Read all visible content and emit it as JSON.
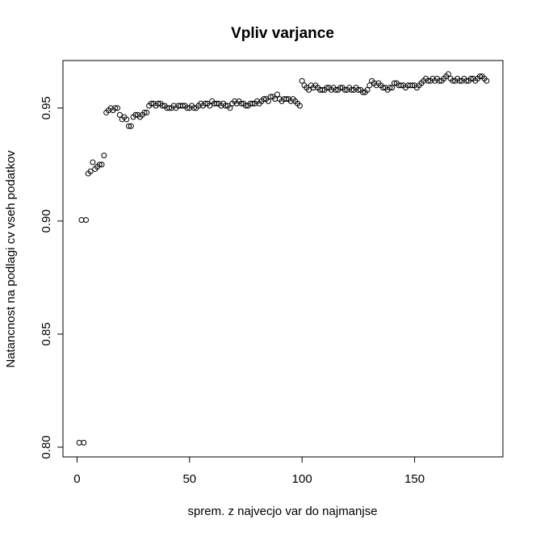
{
  "chart_data": {
    "type": "scatter",
    "title": "Vpliv varjance",
    "x_label": "sprem. z najvecjo var do najmanjse",
    "y_label": "Natancnost na podlagi cv vseh podatkov",
    "color": "#000000",
    "xlim": [
      -6.24,
      189.24
    ],
    "ylim": [
      0.7957,
      0.971
    ],
    "xticks": [
      0,
      50,
      100,
      150
    ],
    "yticks": [
      {
        "value": 0.8,
        "label": "0.80"
      },
      0.85,
      {
        "value": 0.9,
        "label": "0.90"
      },
      0.95
    ],
    "x": [
      1,
      2,
      3,
      4,
      5,
      6,
      7,
      8,
      9,
      10,
      11,
      12,
      13,
      14,
      15,
      16,
      17,
      18,
      19,
      20,
      21,
      22,
      23,
      24,
      25,
      26,
      27,
      28,
      29,
      30,
      31,
      32,
      33,
      34,
      35,
      36,
      37,
      38,
      39,
      40,
      41,
      42,
      43,
      44,
      45,
      46,
      47,
      48,
      49,
      50,
      51,
      52,
      53,
      54,
      55,
      56,
      57,
      58,
      59,
      60,
      61,
      62,
      63,
      64,
      65,
      66,
      67,
      68,
      69,
      70,
      71,
      72,
      73,
      74,
      75,
      76,
      77,
      78,
      79,
      80,
      81,
      82,
      83,
      84,
      85,
      86,
      87,
      88,
      89,
      90,
      91,
      92,
      93,
      94,
      95,
      96,
      97,
      98,
      99,
      100,
      101,
      102,
      103,
      104,
      105,
      106,
      107,
      108,
      109,
      110,
      111,
      112,
      113,
      114,
      115,
      116,
      117,
      118,
      119,
      120,
      121,
      122,
      123,
      124,
      125,
      126,
      127,
      128,
      129,
      130,
      131,
      132,
      133,
      134,
      135,
      136,
      137,
      138,
      139,
      140,
      141,
      142,
      143,
      144,
      145,
      146,
      147,
      148,
      149,
      150,
      151,
      152,
      153,
      154,
      155,
      156,
      157,
      158,
      159,
      160,
      161,
      162,
      163,
      164,
      165,
      166,
      167,
      168,
      169,
      170,
      171,
      172,
      173,
      174,
      175,
      176,
      177,
      178,
      179,
      180,
      181,
      182
    ],
    "values": [
      0.802,
      0.9005,
      0.802,
      0.9005,
      0.921,
      0.922,
      0.926,
      0.923,
      0.924,
      0.925,
      0.925,
      0.929,
      0.948,
      0.949,
      0.95,
      0.949,
      0.95,
      0.95,
      0.947,
      0.945,
      0.946,
      0.945,
      0.942,
      0.942,
      0.946,
      0.947,
      0.947,
      0.946,
      0.947,
      0.948,
      0.948,
      0.951,
      0.952,
      0.952,
      0.951,
      0.952,
      0.952,
      0.951,
      0.951,
      0.95,
      0.95,
      0.95,
      0.951,
      0.95,
      0.951,
      0.951,
      0.951,
      0.951,
      0.95,
      0.95,
      0.951,
      0.95,
      0.95,
      0.951,
      0.952,
      0.951,
      0.952,
      0.952,
      0.951,
      0.953,
      0.952,
      0.952,
      0.952,
      0.951,
      0.952,
      0.951,
      0.951,
      0.95,
      0.952,
      0.953,
      0.952,
      0.953,
      0.952,
      0.952,
      0.951,
      0.951,
      0.952,
      0.952,
      0.952,
      0.953,
      0.952,
      0.953,
      0.954,
      0.954,
      0.953,
      0.955,
      0.955,
      0.954,
      0.956,
      0.954,
      0.953,
      0.954,
      0.954,
      0.954,
      0.953,
      0.954,
      0.953,
      0.952,
      0.951,
      0.962,
      0.96,
      0.959,
      0.958,
      0.96,
      0.959,
      0.96,
      0.959,
      0.958,
      0.958,
      0.958,
      0.959,
      0.959,
      0.958,
      0.959,
      0.958,
      0.958,
      0.959,
      0.959,
      0.958,
      0.958,
      0.959,
      0.958,
      0.958,
      0.959,
      0.958,
      0.958,
      0.957,
      0.957,
      0.958,
      0.96,
      0.962,
      0.961,
      0.96,
      0.961,
      0.96,
      0.959,
      0.959,
      0.958,
      0.959,
      0.959,
      0.961,
      0.961,
      0.96,
      0.96,
      0.96,
      0.959,
      0.96,
      0.96,
      0.96,
      0.96,
      0.959,
      0.96,
      0.961,
      0.962,
      0.963,
      0.962,
      0.962,
      0.963,
      0.962,
      0.963,
      0.962,
      0.962,
      0.963,
      0.964,
      0.965,
      0.963,
      0.962,
      0.962,
      0.963,
      0.962,
      0.962,
      0.963,
      0.962,
      0.962,
      0.963,
      0.963,
      0.962,
      0.963,
      0.964,
      0.964,
      0.963,
      0.962
    ]
  }
}
